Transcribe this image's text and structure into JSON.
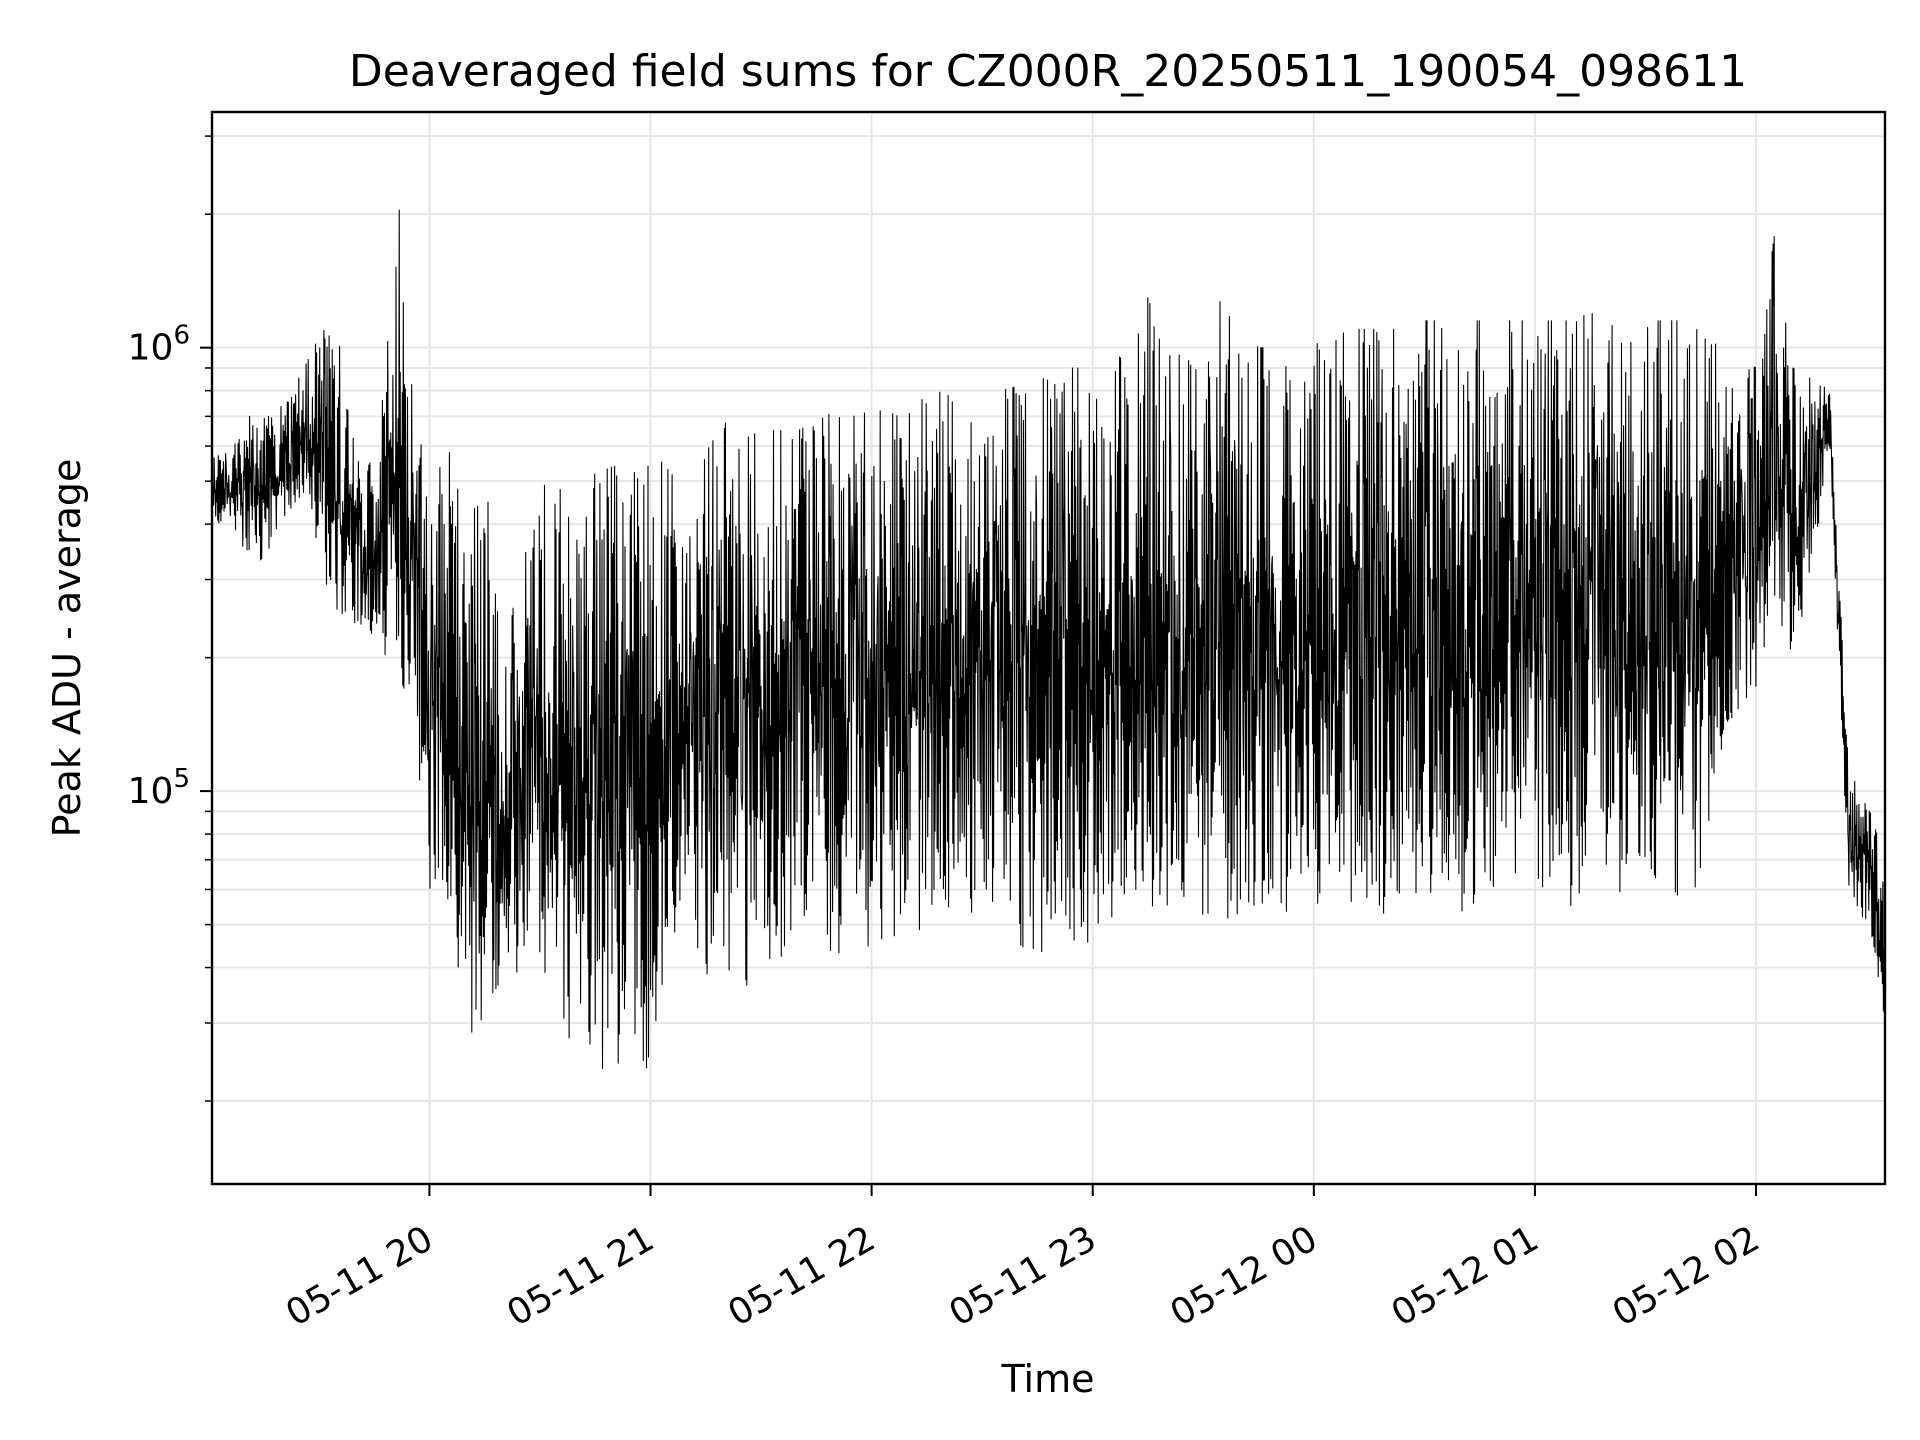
{
  "chart_data": {
    "type": "line",
    "title": "Deaveraged field sums for CZ000R_20250511_190054_098611",
    "xlabel": "Time",
    "ylabel": "Peak ADU - average",
    "yscale": "log",
    "xlim": [
      "2025-05-11 19:01",
      "2025-05-12 02:35"
    ],
    "ylim": [
      13000,
      3400000
    ],
    "grid": true,
    "line_color": "#000000",
    "grid_color": "#e6e6e6",
    "x_ticks": [
      {
        "value": "2025-05-11 20:00",
        "label": "05-11 20"
      },
      {
        "value": "2025-05-11 21:00",
        "label": "05-11 21"
      },
      {
        "value": "2025-05-11 22:00",
        "label": "05-11 22"
      },
      {
        "value": "2025-05-11 23:00",
        "label": "05-11 23"
      },
      {
        "value": "2025-05-12 00:00",
        "label": "05-12 00"
      },
      {
        "value": "2025-05-12 01:00",
        "label": "05-12 01"
      },
      {
        "value": "2025-05-12 02:00",
        "label": "05-12 02"
      }
    ],
    "y_ticks": [
      {
        "value": 100000,
        "base": "10",
        "exp": "5"
      },
      {
        "value": 1000000,
        "base": "10",
        "exp": "6"
      }
    ],
    "series": [
      {
        "x": [
          "2025-05-11 19:01",
          "2025-05-11 19:06",
          "2025-05-11 19:11",
          "2025-05-11 19:16",
          "2025-05-11 19:21",
          "2025-05-11 19:26",
          "2025-05-11 19:31",
          "2025-05-11 19:36",
          "2025-05-11 19:41",
          "2025-05-11 19:46",
          "2025-05-11 19:51",
          "2025-05-11 19:56",
          "2025-05-11 20:00",
          "2025-05-11 20:05",
          "2025-05-11 20:10",
          "2025-05-11 20:15",
          "2025-05-11 20:20",
          "2025-05-11 20:25",
          "2025-05-11 20:30",
          "2025-05-11 20:35",
          "2025-05-11 20:40",
          "2025-05-11 20:45",
          "2025-05-11 20:50",
          "2025-05-11 20:55",
          "2025-05-11 21:00",
          "2025-05-11 21:05",
          "2025-05-11 21:10",
          "2025-05-11 21:15",
          "2025-05-11 21:20",
          "2025-05-11 21:25",
          "2025-05-11 21:30",
          "2025-05-11 21:35",
          "2025-05-11 21:40",
          "2025-05-11 21:45",
          "2025-05-11 21:50",
          "2025-05-11 21:55",
          "2025-05-11 22:00",
          "2025-05-11 22:05",
          "2025-05-11 22:10",
          "2025-05-11 22:15",
          "2025-05-11 22:20",
          "2025-05-11 22:25",
          "2025-05-11 22:30",
          "2025-05-11 22:35",
          "2025-05-11 22:40",
          "2025-05-11 22:45",
          "2025-05-11 22:50",
          "2025-05-11 22:55",
          "2025-05-11 23:00",
          "2025-05-11 23:05",
          "2025-05-11 23:10",
          "2025-05-11 23:15",
          "2025-05-11 23:20",
          "2025-05-11 23:25",
          "2025-05-11 23:30",
          "2025-05-11 23:35",
          "2025-05-11 23:40",
          "2025-05-11 23:45",
          "2025-05-11 23:50",
          "2025-05-11 23:55",
          "2025-05-12 00:00",
          "2025-05-12 00:05",
          "2025-05-12 00:10",
          "2025-05-12 00:15",
          "2025-05-12 00:20",
          "2025-05-12 00:25",
          "2025-05-12 00:30",
          "2025-05-12 00:35",
          "2025-05-12 00:40",
          "2025-05-12 00:45",
          "2025-05-12 00:50",
          "2025-05-12 00:55",
          "2025-05-12 01:00",
          "2025-05-12 01:05",
          "2025-05-12 01:10",
          "2025-05-12 01:15",
          "2025-05-12 01:20",
          "2025-05-12 01:25",
          "2025-05-12 01:30",
          "2025-05-12 01:35",
          "2025-05-12 01:40",
          "2025-05-12 01:45",
          "2025-05-12 01:50",
          "2025-05-12 01:55",
          "2025-05-12 02:00",
          "2025-05-12 02:05",
          "2025-05-12 02:10",
          "2025-05-12 02:15",
          "2025-05-12 02:20",
          "2025-05-12 02:25",
          "2025-05-12 02:30",
          "2025-05-12 02:35"
        ],
        "low": [
          380000,
          400000,
          300000,
          330000,
          420000,
          470000,
          300000,
          220000,
          240000,
          200000,
          180000,
          140000,
          60000,
          55000,
          30000,
          25000,
          40000,
          38000,
          33000,
          28000,
          26000,
          22000,
          24000,
          22000,
          22000,
          40000,
          60000,
          30000,
          40000,
          35000,
          40000,
          40000,
          50000,
          45000,
          40000,
          42000,
          40000,
          45000,
          45000,
          50000,
          55000,
          45000,
          60000,
          50000,
          45000,
          42000,
          45000,
          40000,
          45000,
          50000,
          60000,
          55000,
          55000,
          55000,
          50000,
          50000,
          50000,
          45000,
          50000,
          55000,
          55000,
          50000,
          55000,
          55000,
          50000,
          55000,
          55000,
          55000,
          50000,
          55000,
          60000,
          55000,
          55000,
          55000,
          55000,
          60000,
          55000,
          60000,
          60000,
          65000,
          55000,
          60000,
          100000,
          150000,
          170000,
          250000,
          200000,
          300000,
          600000,
          60000,
          50000,
          30000
        ],
        "high": [
          560000,
          600000,
          700000,
          700000,
          750000,
          900000,
          1100000,
          1000000,
          550000,
          550000,
          2500000,
          700000,
          500000,
          600000,
          400000,
          550000,
          180000,
          350000,
          480000,
          520000,
          480000,
          520000,
          540000,
          540000,
          540000,
          560000,
          350000,
          580000,
          680000,
          620000,
          650000,
          650000,
          650000,
          680000,
          720000,
          700000,
          720000,
          720000,
          750000,
          780000,
          800000,
          800000,
          820000,
          800000,
          820000,
          850000,
          900000,
          900000,
          900000,
          1000000,
          900000,
          1300000,
          950000,
          1000000,
          1000000,
          1500000,
          1100000,
          1000000,
          1000000,
          1050000,
          1050000,
          1050000,
          1100000,
          1100000,
          1100000,
          1100000,
          1150000,
          1150000,
          1150000,
          1150000,
          1150000,
          1150000,
          1150000,
          1150000,
          1150000,
          1200000,
          1150000,
          1150000,
          1150000,
          1150000,
          1150000,
          1100000,
          1000000,
          950000,
          900000,
          1800000,
          900000,
          850000,
          800000,
          120000,
          95000,
          70000
        ]
      }
    ]
  }
}
